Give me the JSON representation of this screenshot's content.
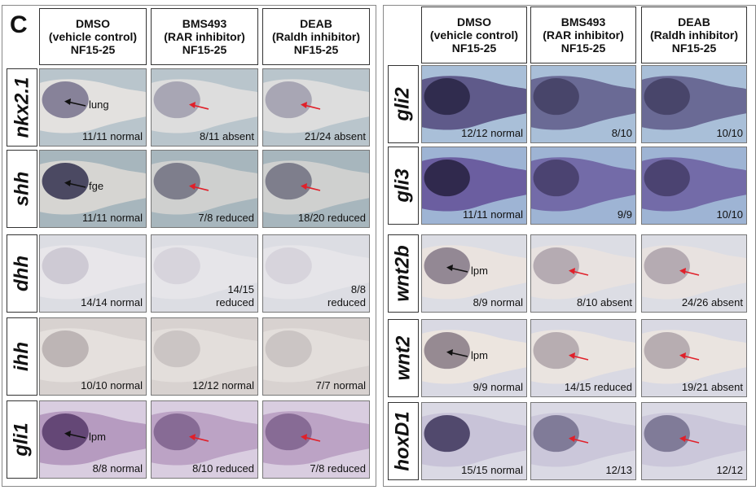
{
  "panel_letter": "C",
  "columns": [
    {
      "line1": "DMSO",
      "line2": "(vehicle control)",
      "line3": "NF15-25"
    },
    {
      "line1": "BMS493",
      "line2": "(RAR inhibitor)",
      "line3": "NF15-25"
    },
    {
      "line1": "DEAB",
      "line2": "(Raldh inhibitor)",
      "line3": "NF15-25"
    }
  ],
  "left_rows": [
    {
      "gene": "nkx2.1",
      "cells": [
        {
          "score": "11/11 normal",
          "label": "lung",
          "arrow": "black"
        },
        {
          "score": "8/11 absent",
          "arrow": "red"
        },
        {
          "score": "21/24 absent",
          "arrow": "red"
        }
      ]
    },
    {
      "gene": "shh",
      "cells": [
        {
          "score": "11/11 normal",
          "label": "fge",
          "arrow": "black"
        },
        {
          "score": "7/8 reduced",
          "arrow": "red"
        },
        {
          "score": "18/20  reduced",
          "arrow": "red"
        }
      ]
    },
    {
      "gene": "dhh",
      "cells": [
        {
          "score": "14/14 normal"
        },
        {
          "score": "14/15",
          "score2": "reduced"
        },
        {
          "score": "8/8",
          "score2": "reduced"
        }
      ]
    },
    {
      "gene": "ihh",
      "cells": [
        {
          "score": "10/10 normal"
        },
        {
          "score": "12/12 normal"
        },
        {
          "score": "7/7 normal"
        }
      ]
    },
    {
      "gene": "gli1",
      "cells": [
        {
          "score": "8/8 normal",
          "label": "lpm",
          "arrow": "black"
        },
        {
          "score": "8/10 reduced",
          "arrow": "red"
        },
        {
          "score": "7/8 reduced",
          "arrow": "red"
        }
      ]
    }
  ],
  "right_rows": [
    {
      "gene": "gli2",
      "cells": [
        {
          "score": "12/12 normal"
        },
        {
          "score": "8/10"
        },
        {
          "score": "10/10"
        }
      ]
    },
    {
      "gene": "gli3",
      "cells": [
        {
          "score": "11/11 normal"
        },
        {
          "score": "9/9"
        },
        {
          "score": "10/10"
        }
      ]
    },
    {
      "gene": "wnt2b",
      "cells": [
        {
          "score": "8/9 normal",
          "label": "lpm",
          "arrow": "black"
        },
        {
          "score": "8/10 absent",
          "arrow": "red"
        },
        {
          "score": "24/26 absent",
          "arrow": "red"
        }
      ]
    },
    {
      "gene": "wnt2",
      "cells": [
        {
          "score": "9/9 normal",
          "label": "lpm",
          "arrow": "black"
        },
        {
          "score": "14/15 reduced",
          "arrow": "red"
        },
        {
          "score": "19/21 absent",
          "arrow": "red"
        }
      ]
    },
    {
      "gene": "hoxD1",
      "cells": [
        {
          "score": "15/15 normal"
        },
        {
          "score": "12/13",
          "arrow": "red"
        },
        {
          "score": "12/12",
          "arrow": "red"
        }
      ]
    }
  ],
  "colors": {
    "arrow_red": "#e0202a",
    "arrow_black": "#111111",
    "border": "#333333"
  }
}
